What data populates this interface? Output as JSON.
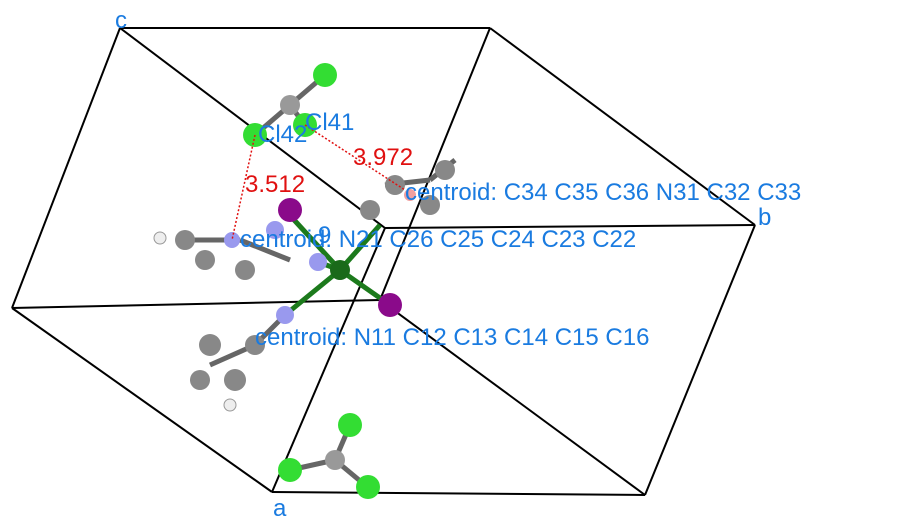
{
  "axes": {
    "a": "a",
    "b": "b",
    "c": "c"
  },
  "atom_labels": [
    "Cl42",
    "Cl41",
    "9"
  ],
  "distances": [
    "3.512",
    "3.972"
  ],
  "centroids": [
    "centroid: C34 C35 C36 N31 C32 C33",
    "centroid: N21 C26 C25 C24 C23 C22",
    "centroid: N11 C12 C13 C14 C15 C16"
  ]
}
